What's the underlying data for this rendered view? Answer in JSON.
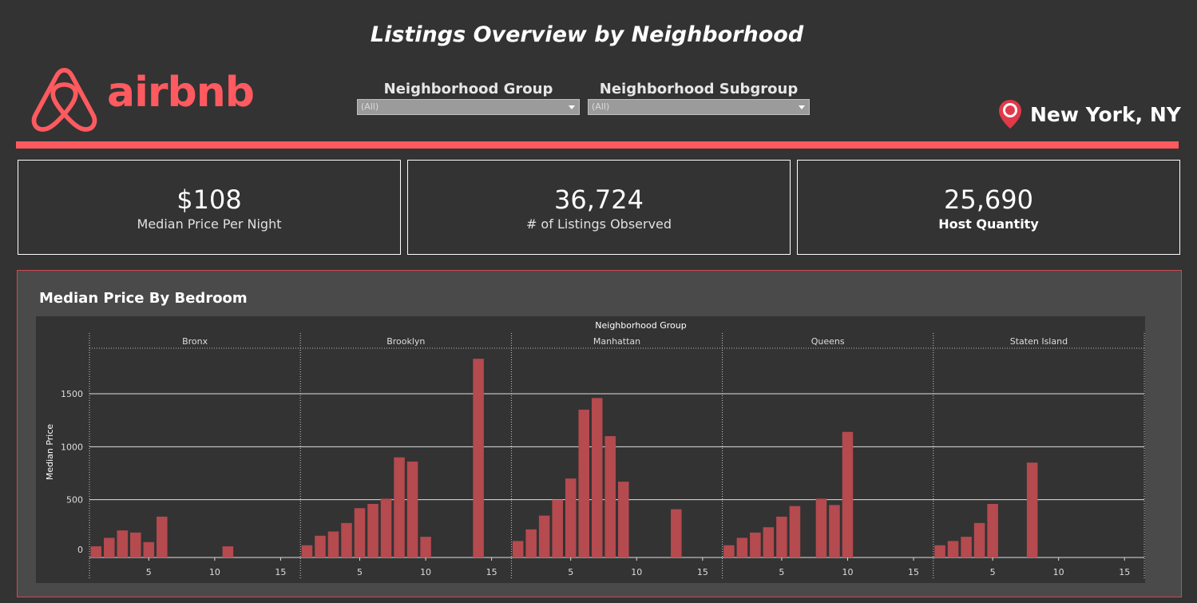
{
  "header": {
    "title": "Listings Overview by Neighborhood",
    "logo_text": "airbnb",
    "location": "New York, NY"
  },
  "filters": [
    {
      "label": "Neighborhood Group",
      "value": "(All)"
    },
    {
      "label": "Neighborhood Subgroup",
      "value": "(All)"
    }
  ],
  "kpis": [
    {
      "value": "$108",
      "label": "Median Price Per Night"
    },
    {
      "value": "36,724",
      "label": "# of Listings Observed"
    },
    {
      "value": "25,690",
      "label": "Host Quantity"
    }
  ],
  "colors": {
    "brand": "#ff5a5f",
    "bar": "#b54a4f",
    "background": "#333333",
    "panel": "#4a4a4a"
  },
  "chart_title": "Median Price By Bedroom",
  "chart_data": {
    "type": "bar",
    "column_header": "Neighborhood Group",
    "ylabel": "Median Price",
    "ylim": [
      0,
      1900
    ],
    "xlim": [
      0.5,
      16.5
    ],
    "yticks": [
      0,
      500,
      1000,
      1500
    ],
    "xticks": [
      5,
      10,
      15
    ],
    "grid": true,
    "panels": [
      {
        "name": "Bronx",
        "x": [
          1,
          2,
          3,
          4,
          5,
          6,
          11
        ],
        "values": [
          60,
          140,
          210,
          190,
          100,
          340,
          60
        ]
      },
      {
        "name": "Brooklyn",
        "x": [
          1,
          2,
          3,
          4,
          5,
          6,
          7,
          8,
          9,
          10,
          14
        ],
        "values": [
          70,
          160,
          200,
          280,
          420,
          460,
          510,
          900,
          860,
          150,
          1830
        ]
      },
      {
        "name": "Manhattan",
        "x": [
          1,
          2,
          3,
          4,
          5,
          6,
          7,
          8,
          9,
          13
        ],
        "values": [
          110,
          220,
          350,
          500,
          700,
          1350,
          1460,
          1100,
          670,
          410
        ]
      },
      {
        "name": "Queens",
        "x": [
          1,
          2,
          3,
          4,
          5,
          6,
          8,
          9,
          10
        ],
        "values": [
          70,
          140,
          190,
          240,
          340,
          440,
          510,
          450,
          1140
        ]
      },
      {
        "name": "Staten Island",
        "x": [
          1,
          2,
          3,
          4,
          5,
          8
        ],
        "values": [
          70,
          110,
          150,
          280,
          460,
          850
        ]
      }
    ]
  }
}
